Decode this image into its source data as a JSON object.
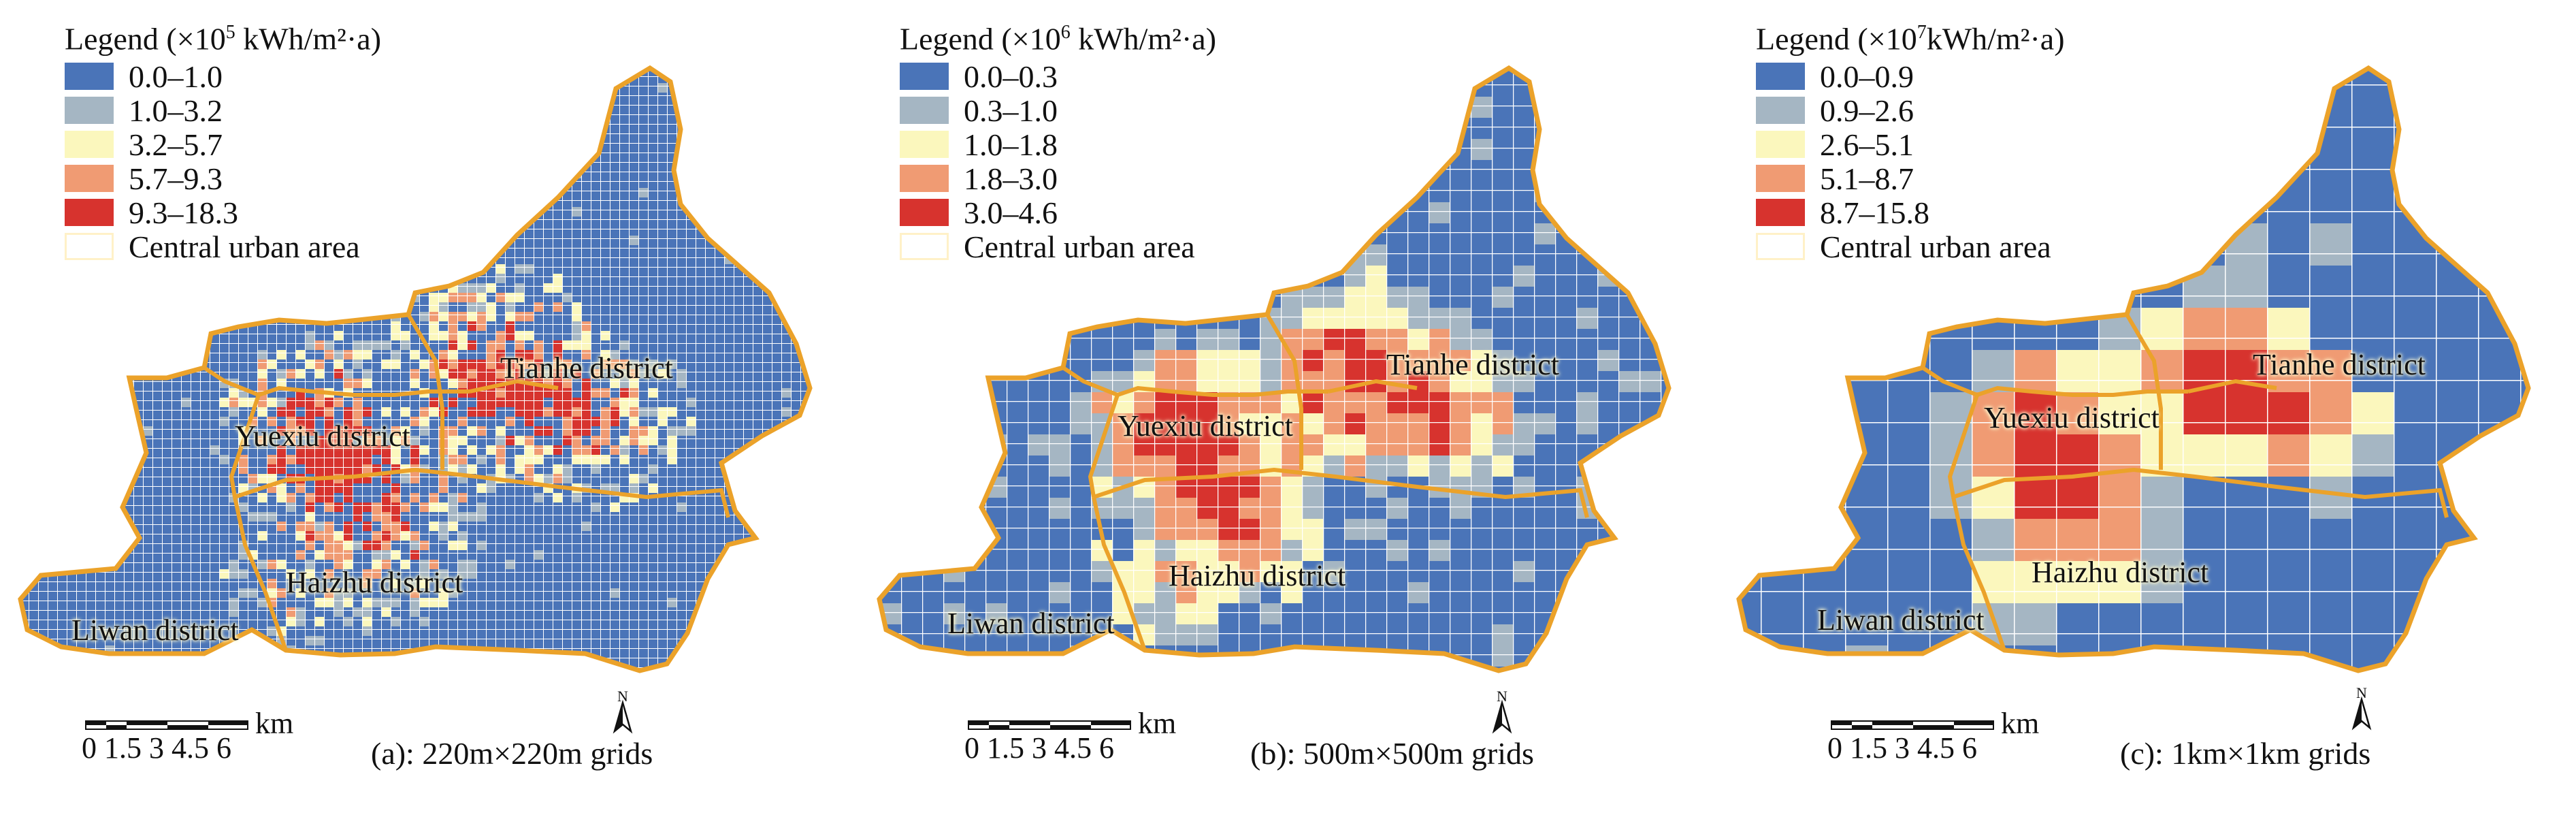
{
  "panels": [
    {
      "legend_title_prefix": "Legend (×10",
      "legend_exponent": "5",
      "legend_unit": " kWh/m²·a)",
      "legend_items": [
        {
          "label": "0.0–1.0",
          "color": "#4a74b8"
        },
        {
          "label": "1.0–3.2",
          "color": "#a5b6c3"
        },
        {
          "label": "3.2–5.7",
          "color": "#fbf7bd"
        },
        {
          "label": "5.7–9.3",
          "color": "#f09b73"
        },
        {
          "label": "9.3–18.3",
          "color": "#d7332e"
        }
      ],
      "boundary_label": "Central urban area",
      "districts": {
        "tianhe": "Tianhe district",
        "yuexiu": "Yuexiu district",
        "haizhu": "Haizhu district",
        "liwan": "Liwan district"
      },
      "scale_unit": "km",
      "scale_ticks": "0 1.5  3  4.5  6",
      "north_label": "N",
      "caption": "(a): 220m×220m grids"
    },
    {
      "legend_title_prefix": "Legend (×10",
      "legend_exponent": "6",
      "legend_unit": " kWh/m²·a)",
      "legend_items": [
        {
          "label": "0.0–0.3",
          "color": "#4a74b8"
        },
        {
          "label": "0.3–1.0",
          "color": "#a5b6c3"
        },
        {
          "label": "1.0–1.8",
          "color": "#fbf7bd"
        },
        {
          "label": "1.8–3.0",
          "color": "#f09b73"
        },
        {
          "label": "3.0–4.6",
          "color": "#d7332e"
        }
      ],
      "boundary_label": "Central urban area",
      "districts": {
        "tianhe": "Tianhe district",
        "yuexiu": "Yuexiu district",
        "haizhu": "Haizhu district",
        "liwan": "Liwan district"
      },
      "scale_unit": "km",
      "scale_ticks": "0 1.5  3  4.5  6",
      "north_label": "N",
      "caption": "(b): 500m×500m grids"
    },
    {
      "legend_title_prefix": "Legend (×10",
      "legend_exponent": "7",
      "legend_unit": "kWh/m²·a)",
      "legend_items": [
        {
          "label": "0.0–0.9",
          "color": "#4a74b8"
        },
        {
          "label": "0.9–2.6",
          "color": "#a5b6c3"
        },
        {
          "label": "2.6–5.1",
          "color": "#fbf7bd"
        },
        {
          "label": "5.1–8.7",
          "color": "#f09b73"
        },
        {
          "label": "8.7–15.8",
          "color": "#d7332e"
        }
      ],
      "boundary_label": "Central urban area",
      "districts": {
        "tianhe": "Tianhe district",
        "yuexiu": "Yuexiu district",
        "haizhu": "Haizhu district",
        "liwan": "Liwan district"
      },
      "scale_unit": "km",
      "scale_ticks": "0 1.5  3  4.5  6",
      "north_label": "N",
      "caption": "(c): 1km×1km grids"
    }
  ],
  "colors": {
    "boundary": "#eba22a",
    "grid_line": "#ffffff"
  }
}
